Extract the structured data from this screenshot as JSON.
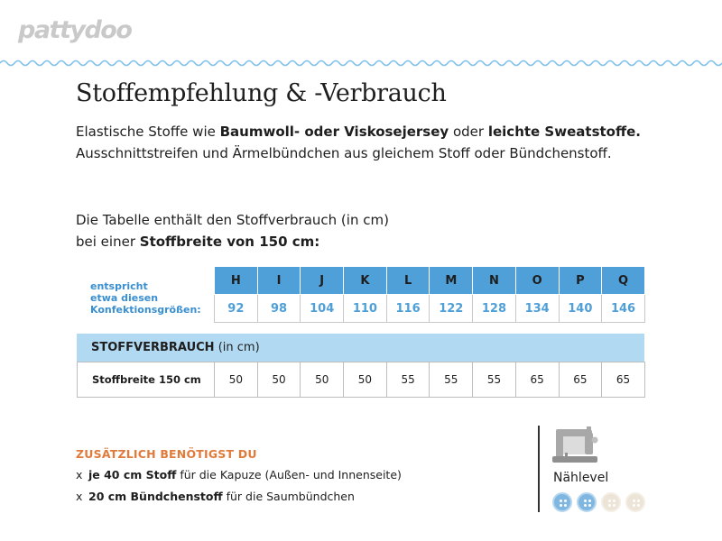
{
  "brand": {
    "logo": "pattydoo"
  },
  "title": "Stoffempfehlung & -Verbrauch",
  "intro": {
    "p1_a": "Elastische Stoffe wie ",
    "p1_b": "Baumwoll- oder Viskosejersey",
    "p1_c": " oder ",
    "p1_d": "leichte Sweatstoffe.",
    "p1_e": " Ausschnittstreifen und Ärmelbündchen aus gleichem Stoff oder Bündchenstoff.",
    "p2_a": "Die Tabelle enthält den Stoffverbrauch (in cm)",
    "p2_b": "bei einer ",
    "p2_c": "Stoffbreite von 150 cm:"
  },
  "size_table": {
    "label_line1": "entspricht",
    "label_line2": "etwa diesen",
    "label_line3": "Konfektionsgrößen:",
    "sizes": [
      "H",
      "I",
      "J",
      "K",
      "L",
      "M",
      "N",
      "O",
      "P",
      "Q"
    ],
    "numbers": [
      "92",
      "98",
      "104",
      "110",
      "116",
      "122",
      "128",
      "134",
      "140",
      "146"
    ]
  },
  "consumption": {
    "header_bold": "STOFFVERBRAUCH",
    "header_rest": "(in cm)",
    "row_label": "Stoffbreite 150 cm",
    "values": [
      "50",
      "50",
      "50",
      "50",
      "55",
      "55",
      "55",
      "65",
      "65",
      "65"
    ]
  },
  "extras": {
    "title": "ZUSÄTZLICH BENÖTIGST DU",
    "bullet": "x",
    "item1_bold": "je 40 cm Stoff",
    "item1_rest": " für die Kapuze (Außen- und Innenseite)",
    "item2_bold": "20 cm Bündchenstoff",
    "item2_rest": " für die Saumbündchen"
  },
  "level": {
    "icon": "sewing-machine-icon",
    "label": "Nählevel",
    "value": 2,
    "max": 4
  },
  "colors": {
    "accent_blue": "#4f9fd8",
    "light_blue": "#b2d9f2",
    "accent_orange": "#e07b3b",
    "logo_gray": "#c9c9c9"
  }
}
